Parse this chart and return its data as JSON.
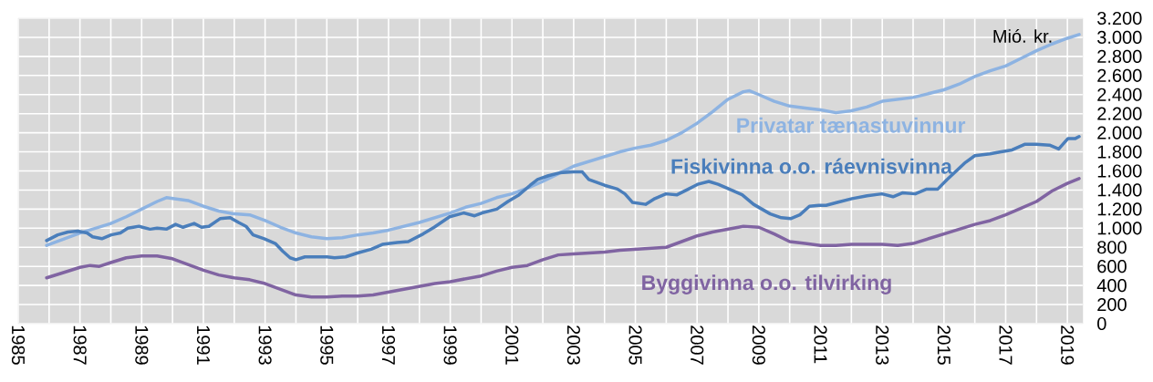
{
  "chart_data": {
    "type": "line",
    "annotations": [
      "Mió. kr."
    ],
    "xlim": [
      1985,
      2019.5
    ],
    "xticks": [
      1985,
      {
        "value": 1986,
        "label": null
      },
      1987,
      {
        "value": 1988,
        "label": null
      },
      1989,
      {
        "value": 1990,
        "label": null
      },
      1991,
      {
        "value": 1992,
        "label": null
      },
      1993,
      {
        "value": 1994,
        "label": null
      },
      1995,
      {
        "value": 1996,
        "label": null
      },
      1997,
      {
        "value": 1998,
        "label": null
      },
      1999,
      {
        "value": 2000,
        "label": null
      },
      2001,
      {
        "value": 2002,
        "label": null
      },
      2003,
      {
        "value": 2004,
        "label": null
      },
      2005,
      {
        "value": 2006,
        "label": null
      },
      2007,
      {
        "value": 2008,
        "label": null
      },
      2009,
      {
        "value": 2010,
        "label": null
      },
      2011,
      {
        "value": 2012,
        "label": null
      },
      2013,
      {
        "value": 2014,
        "label": null
      },
      2015,
      {
        "value": 2016,
        "label": null
      },
      2017,
      {
        "value": 2018,
        "label": null
      },
      2019
    ],
    "ylim": [
      0,
      3200
    ],
    "yticks": [
      0,
      200,
      400,
      600,
      800,
      {
        "value": 1000,
        "label": "1.000"
      },
      {
        "value": 1200,
        "label": "1.200"
      },
      {
        "value": 1400,
        "label": "1.400"
      },
      {
        "value": 1600,
        "label": "1.600"
      },
      {
        "value": 1800,
        "label": "1.800"
      },
      {
        "value": 2000,
        "label": "2.000"
      },
      {
        "value": 2200,
        "label": "2.200"
      },
      {
        "value": 2400,
        "label": "2.400"
      },
      {
        "value": 2600,
        "label": "2.600"
      },
      {
        "value": 2800,
        "label": "2.800"
      },
      {
        "value": 3000,
        "label": "3.000"
      },
      {
        "value": 3200,
        "label": "3.200"
      }
    ],
    "grid": true,
    "marker": "none",
    "line_style": "solid",
    "series": [
      {
        "name": "Privatar tænastuvinnur",
        "color": "#8db3e2",
        "x": [
          1985.92,
          1986.5,
          1987,
          1987.5,
          1988,
          1988.5,
          1989,
          1989.5,
          1989.8,
          1990.5,
          1991,
          1991.5,
          1992,
          1992.5,
          1993,
          1993.5,
          1994,
          1994.5,
          1995,
          1995.5,
          1996,
          1996.5,
          1997,
          1997.5,
          1998,
          1998.5,
          1999,
          1999.5,
          2000,
          2000.5,
          2001,
          2001.5,
          2002,
          2002.5,
          2003,
          2003.5,
          2004,
          2004.5,
          2005,
          2005.5,
          2006,
          2006.5,
          2007,
          2007.5,
          2008,
          2008.5,
          2008.7,
          2009,
          2009.5,
          2010,
          2010.5,
          2011,
          2011.5,
          2012,
          2012.5,
          2013,
          2013.5,
          2014,
          2014.5,
          2015,
          2015.5,
          2016,
          2016.5,
          2017,
          2017.5,
          2018,
          2018.5,
          2019,
          2019.38
        ],
        "values": [
          820,
          890,
          950,
          1000,
          1050,
          1120,
          1200,
          1280,
          1320,
          1290,
          1230,
          1180,
          1150,
          1140,
          1080,
          1010,
          950,
          910,
          890,
          900,
          930,
          950,
          980,
          1020,
          1060,
          1110,
          1160,
          1220,
          1260,
          1320,
          1360,
          1420,
          1490,
          1570,
          1650,
          1700,
          1750,
          1800,
          1840,
          1870,
          1920,
          2000,
          2100,
          2220,
          2350,
          2430,
          2440,
          2400,
          2330,
          2280,
          2260,
          2240,
          2210,
          2230,
          2270,
          2330,
          2350,
          2370,
          2410,
          2450,
          2510,
          2590,
          2650,
          2700,
          2780,
          2860,
          2930,
          2990,
          3030
        ]
      },
      {
        "name": "Fiskivinna o.o. ráevnisvinna",
        "color": "#4a7ebb",
        "x": [
          1985.92,
          1986.28,
          1986.61,
          1986.93,
          1987.23,
          1987.41,
          1987.71,
          1988.01,
          1988.31,
          1988.55,
          1988.91,
          1989.27,
          1989.5,
          1989.8,
          1990.1,
          1990.34,
          1990.7,
          1990.94,
          1991.18,
          1991.54,
          1991.87,
          1992.14,
          1992.38,
          1992.61,
          1992.97,
          1993.33,
          1993.57,
          1993.81,
          1994,
          1994.29,
          1994.65,
          1995.01,
          1995.25,
          1995.61,
          1995.99,
          1996.44,
          1996.8,
          1997.28,
          1997.64,
          1998.12,
          1998.48,
          1998.98,
          1999.43,
          1999.79,
          2000.03,
          2000.51,
          2000.87,
          2001.23,
          2001.59,
          2001.83,
          2002.18,
          2002.54,
          2003,
          2003.28,
          2003.49,
          2004,
          2004.42,
          2004.66,
          2004.91,
          2005.33,
          2005.63,
          2005.99,
          2006.35,
          2006.72,
          2007.02,
          2007.38,
          2007.68,
          2008.04,
          2008.46,
          2008.83,
          2009.37,
          2009.73,
          2010.03,
          2010.33,
          2010.64,
          2010.94,
          2011.18,
          2011.54,
          2012.02,
          2012.51,
          2012.99,
          2013.35,
          2013.65,
          2014.07,
          2014.44,
          2014.8,
          2015.1,
          2015.4,
          2015.7,
          2016,
          2016.49,
          2016.85,
          2017.21,
          2017.63,
          2017.99,
          2018.42,
          2018.72,
          2019.02,
          2019.26,
          2019.38
        ],
        "values": [
          870,
          930,
          960,
          970,
          950,
          910,
          890,
          930,
          950,
          1000,
          1020,
          990,
          1000,
          990,
          1040,
          1010,
          1050,
          1010,
          1020,
          1100,
          1110,
          1060,
          1020,
          930,
          890,
          840,
          760,
          690,
          670,
          700,
          700,
          700,
          690,
          700,
          740,
          780,
          830,
          850,
          860,
          940,
          1010,
          1120,
          1160,
          1130,
          1160,
          1200,
          1280,
          1350,
          1450,
          1510,
          1550,
          1580,
          1590,
          1590,
          1510,
          1450,
          1410,
          1360,
          1270,
          1250,
          1310,
          1360,
          1350,
          1410,
          1460,
          1490,
          1460,
          1410,
          1350,
          1250,
          1150,
          1110,
          1100,
          1140,
          1230,
          1240,
          1240,
          1270,
          1310,
          1340,
          1360,
          1330,
          1370,
          1360,
          1410,
          1410,
          1510,
          1600,
          1690,
          1760,
          1780,
          1800,
          1820,
          1880,
          1880,
          1870,
          1830,
          1940,
          1940,
          1960
        ]
      },
      {
        "name": "Byggivinna o.o. tilvirking",
        "color": "#8064a2",
        "x": [
          1985.92,
          1986.51,
          1987,
          1987.33,
          1987.63,
          1988,
          1988.5,
          1989,
          1989.5,
          1990,
          1990.5,
          1991,
          1991.5,
          1992,
          1992.5,
          1993,
          1993.5,
          1994,
          1994.5,
          1995,
          1995.5,
          1996,
          1996.5,
          1997,
          1997.5,
          1998,
          1998.5,
          1999,
          1999.5,
          2000,
          2000.5,
          2001,
          2001.5,
          2002,
          2002.5,
          2003,
          2003.5,
          2004,
          2004.5,
          2005,
          2005.5,
          2006,
          2006.5,
          2007,
          2007.5,
          2008,
          2008.5,
          2009,
          2009.5,
          2010,
          2010.5,
          2011,
          2011.5,
          2012,
          2012.5,
          2013,
          2013.5,
          2014,
          2014.5,
          2015,
          2015.5,
          2016,
          2016.5,
          2017,
          2017.5,
          2018,
          2018.5,
          2019,
          2019.38
        ],
        "values": [
          480,
          540,
          590,
          610,
          600,
          640,
          690,
          710,
          710,
          680,
          620,
          560,
          510,
          480,
          460,
          420,
          360,
          300,
          280,
          280,
          290,
          290,
          300,
          330,
          360,
          390,
          420,
          440,
          470,
          500,
          550,
          590,
          610,
          670,
          720,
          730,
          740,
          750,
          770,
          780,
          790,
          800,
          860,
          920,
          960,
          990,
          1020,
          1010,
          940,
          860,
          840,
          820,
          820,
          830,
          830,
          830,
          820,
          840,
          890,
          940,
          990,
          1040,
          1080,
          1140,
          1210,
          1280,
          1390,
          1470,
          1520
        ]
      }
    ]
  }
}
